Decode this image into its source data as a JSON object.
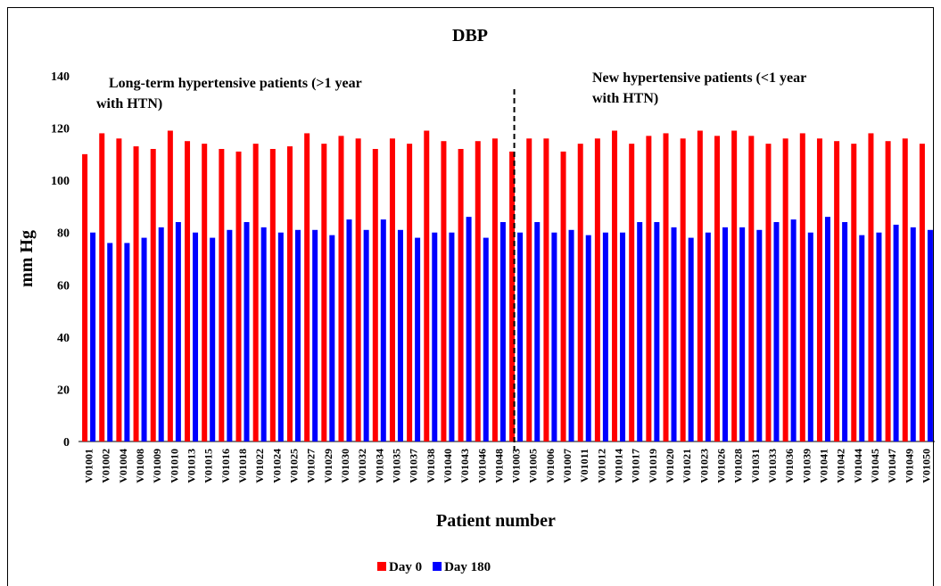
{
  "chart_data": {
    "type": "bar",
    "title": "DBP",
    "x_label": "Patient number",
    "y_label": "mm Hg",
    "annotations": [
      [
        "Long-term hypertensive patients (>1 year",
        "with HTN)"
      ],
      [
        "New hypertensive patients (<1 year",
        "with HTN)"
      ]
    ],
    "categories": [
      "V01001",
      "V01002",
      "V01004",
      "V01008",
      "V01009",
      "V01010",
      "V01013",
      "V01015",
      "V01016",
      "V01018",
      "V01022",
      "V01024",
      "V01025",
      "V01027",
      "V01029",
      "V01030",
      "V01032",
      "V01034",
      "V01035",
      "V01037",
      "V01038",
      "V01040",
      "V01043",
      "V01046",
      "V01048",
      "V01003",
      "V01005",
      "V01006",
      "V01007",
      "V01011",
      "V01012",
      "V01014",
      "V01017",
      "V01019",
      "V01020",
      "V01021",
      "V01023",
      "V01026",
      "V01028",
      "V01031",
      "V01033",
      "V01036",
      "V01039",
      "V01041",
      "V01042",
      "V01044",
      "V01045",
      "V01047",
      "V01049",
      "V01050"
    ],
    "series": [
      {
        "name": "Day 0",
        "color": "#ff0000",
        "values": [
          110,
          118,
          116,
          113,
          112,
          119,
          115,
          114,
          112,
          111,
          114,
          112,
          113,
          118,
          114,
          117,
          116,
          112,
          116,
          114,
          119,
          115,
          112,
          115,
          116,
          111,
          116,
          116,
          111,
          114,
          116,
          119,
          114,
          117,
          118,
          116,
          119,
          117,
          119,
          117,
          114,
          116,
          118,
          116,
          115,
          114,
          118,
          115,
          116,
          114
        ]
      },
      {
        "name": "Day 180",
        "color": "#0000ff",
        "values": [
          80,
          76,
          76,
          78,
          82,
          84,
          80,
          78,
          81,
          84,
          82,
          80,
          81,
          81,
          79,
          85,
          81,
          85,
          81,
          78,
          80,
          80,
          86,
          78,
          84,
          80,
          84,
          80,
          81,
          79,
          80,
          80,
          84,
          84,
          82,
          78,
          80,
          82,
          82,
          81,
          84,
          85,
          80,
          86,
          84,
          79,
          80,
          83,
          82,
          81
        ]
      }
    ],
    "ylim": [
      0,
      140
    ],
    "yticks": [
      0,
      20,
      40,
      60,
      80,
      100,
      120,
      140
    ],
    "grid": false,
    "legend": "bottom"
  }
}
